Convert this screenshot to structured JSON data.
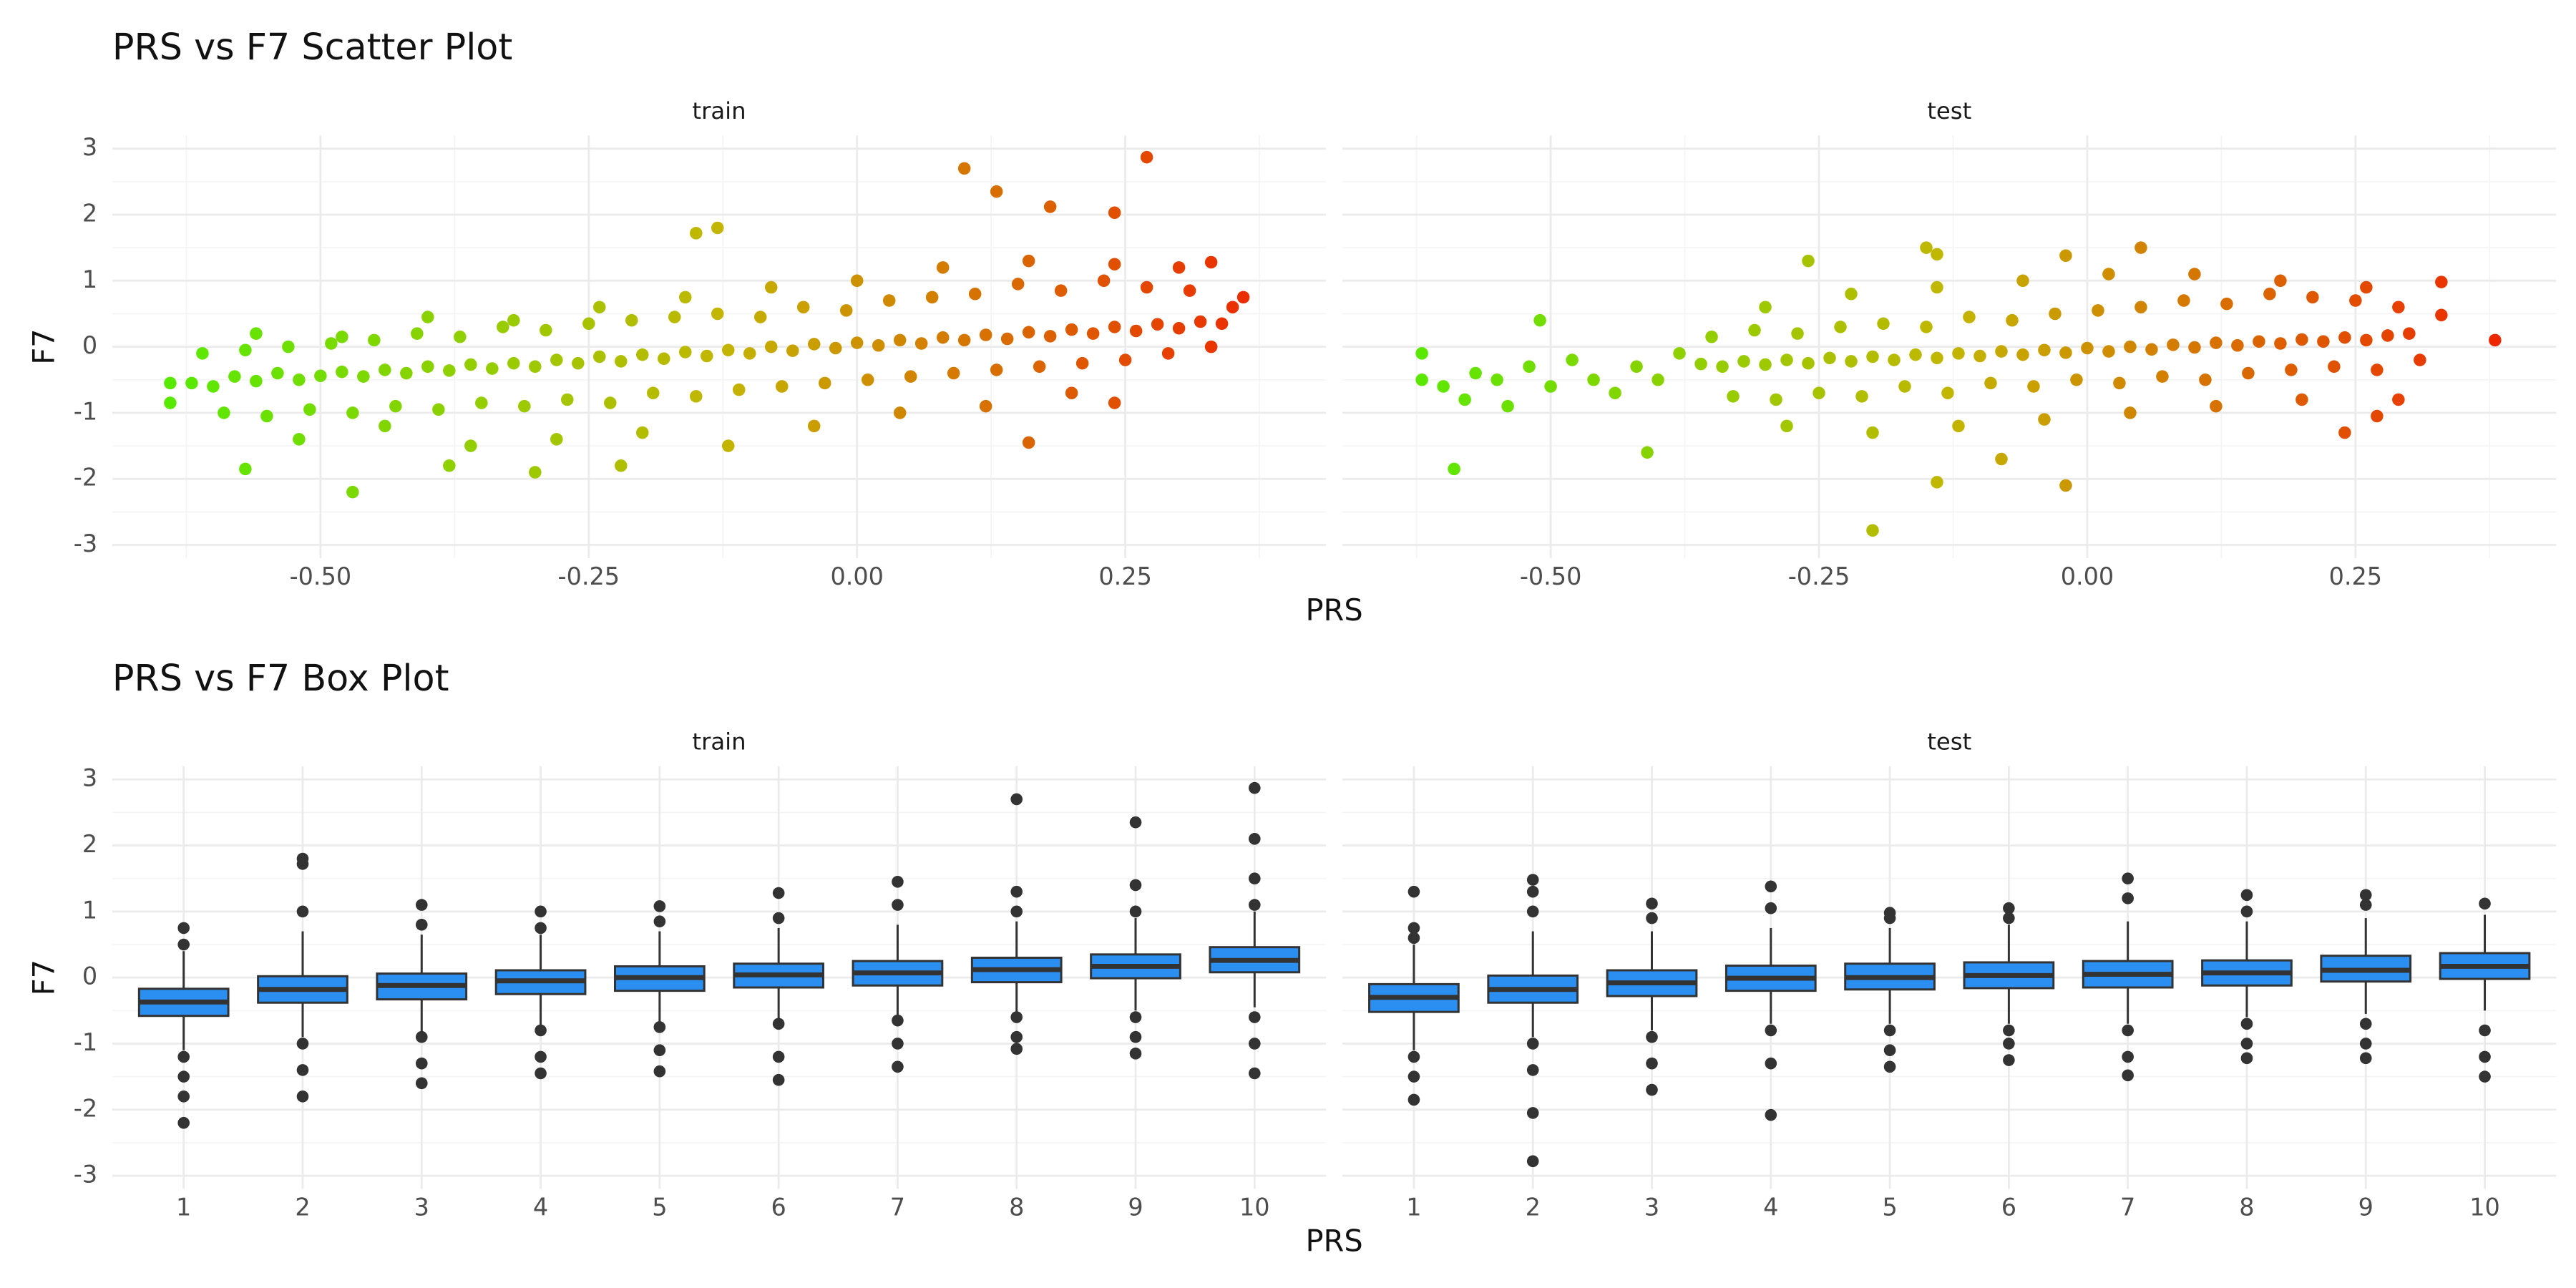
{
  "chart_data": [
    {
      "type": "scatter",
      "title": "PRS vs F7 Scatter Plot",
      "xlabel": "PRS",
      "ylabel": "F7",
      "xlim": [
        -0.694,
        0.437
      ],
      "ylim": [
        -3.2,
        3.2
      ],
      "xticks": [
        {
          "value": -0.5,
          "label": "-0.50"
        },
        -0.25,
        {
          "value": 0,
          "label": "0.00"
        },
        0.25
      ],
      "yticks": [
        -3,
        -2,
        -1,
        0,
        1,
        2,
        3
      ],
      "x_minor_ticks": [
        -0.625,
        -0.375,
        -0.125,
        0.125,
        0.375
      ],
      "y_minor_ticks": [
        -2.5,
        -1.5,
        -0.5,
        0.5,
        1.5,
        2.5
      ],
      "grid": true,
      "color_scale": [
        "#4cf000",
        "#c2b600",
        "#f21800"
      ],
      "facets": [
        {
          "name": "train",
          "x": [
            -0.62,
            -0.6,
            -0.58,
            -0.56,
            -0.54,
            -0.52,
            -0.5,
            -0.48,
            -0.46,
            -0.44,
            -0.42,
            -0.4,
            -0.38,
            -0.36,
            -0.34,
            -0.32,
            -0.3,
            -0.28,
            -0.26,
            -0.24,
            -0.22,
            -0.2,
            -0.18,
            -0.16,
            -0.14,
            -0.12,
            -0.1,
            -0.08,
            -0.06,
            -0.04,
            -0.02,
            0,
            0.02,
            0.04,
            0.06,
            0.08,
            0.1,
            0.12,
            0.14,
            0.16,
            0.18,
            0.2,
            0.22,
            0.24,
            0.26,
            0.28,
            0.3,
            0.32,
            0.34,
            -0.61,
            -0.57,
            -0.53,
            -0.49,
            -0.45,
            -0.41,
            -0.37,
            -0.33,
            -0.29,
            -0.25,
            -0.21,
            -0.17,
            -0.13,
            -0.09,
            -0.05,
            -0.01,
            0.03,
            0.07,
            0.11,
            0.15,
            0.19,
            0.23,
            0.27,
            0.31,
            -0.59,
            -0.55,
            -0.51,
            -0.47,
            -0.43,
            -0.39,
            -0.35,
            -0.31,
            -0.27,
            -0.23,
            -0.19,
            -0.15,
            -0.11,
            -0.07,
            -0.03,
            0.01,
            0.05,
            0.09,
            0.13,
            0.17,
            0.21,
            0.25,
            0.29,
            0.33,
            -0.56,
            -0.48,
            -0.4,
            -0.32,
            -0.24,
            -0.16,
            -0.08,
            0,
            0.08,
            0.16,
            0.24,
            0.3,
            -0.52,
            -0.44,
            -0.36,
            -0.28,
            -0.2,
            -0.12,
            -0.04,
            0.04,
            0.12,
            0.2,
            0.1,
            0.27,
            0.13,
            0.18,
            0.24,
            -0.15,
            -0.13,
            -0.47,
            -0.57,
            -0.64,
            -0.64,
            0.36,
            0.35,
            0.33,
            0.24,
            0.16,
            -0.38,
            -0.3,
            -0.22
          ],
          "values": [
            -0.55,
            -0.6,
            -0.45,
            -0.52,
            -0.4,
            -0.5,
            -0.44,
            -0.38,
            -0.45,
            -0.35,
            -0.4,
            -0.3,
            -0.36,
            -0.27,
            -0.33,
            -0.25,
            -0.3,
            -0.2,
            -0.25,
            -0.15,
            -0.22,
            -0.12,
            -0.18,
            -0.08,
            -0.14,
            -0.05,
            -0.1,
            0,
            -0.06,
            0.04,
            -0.02,
            0.06,
            0.02,
            0.1,
            0.05,
            0.14,
            0.1,
            0.18,
            0.12,
            0.22,
            0.16,
            0.26,
            0.2,
            0.3,
            0.24,
            0.34,
            0.28,
            0.38,
            0.35,
            -0.1,
            -0.05,
            0,
            0.05,
            0.1,
            0.2,
            0.15,
            0.3,
            0.25,
            0.35,
            0.4,
            0.45,
            0.5,
            0.45,
            0.6,
            0.55,
            0.7,
            0.75,
            0.8,
            0.95,
            0.85,
            1,
            0.9,
            0.85,
            -1,
            -1.05,
            -0.95,
            -1,
            -0.9,
            -0.95,
            -0.85,
            -0.9,
            -0.8,
            -0.85,
            -0.7,
            -0.75,
            -0.65,
            -0.6,
            -0.55,
            -0.5,
            -0.45,
            -0.4,
            -0.35,
            -0.3,
            -0.25,
            -0.2,
            -0.1,
            0,
            0.2,
            0.15,
            0.45,
            0.4,
            0.6,
            0.75,
            0.9,
            1,
            1.2,
            1.3,
            1.25,
            1.2,
            -1.4,
            -1.2,
            -1.5,
            -1.4,
            -1.3,
            -1.5,
            -1.2,
            -1,
            -0.9,
            -0.7,
            2.7,
            2.87,
            2.35,
            2.12,
            2.03,
            1.72,
            1.8,
            -2.2,
            -1.85,
            -0.55,
            -0.85,
            0.75,
            0.6,
            1.28,
            -0.85,
            -1.45,
            -1.8,
            -1.9,
            -1.8
          ]
        },
        {
          "name": "test",
          "x": [
            -0.36,
            -0.34,
            -0.32,
            -0.3,
            -0.28,
            -0.26,
            -0.24,
            -0.22,
            -0.2,
            -0.18,
            -0.16,
            -0.14,
            -0.12,
            -0.1,
            -0.08,
            -0.06,
            -0.04,
            -0.02,
            0,
            0.02,
            0.04,
            0.06,
            0.08,
            0.1,
            0.12,
            0.14,
            0.16,
            0.18,
            0.2,
            0.22,
            0.24,
            0.26,
            0.28,
            0.3,
            -0.35,
            -0.31,
            -0.27,
            -0.23,
            -0.19,
            -0.15,
            -0.11,
            -0.07,
            -0.03,
            0.01,
            0.05,
            0.09,
            0.13,
            0.17,
            0.21,
            0.25,
            0.29,
            -0.33,
            -0.29,
            -0.25,
            -0.21,
            -0.17,
            -0.13,
            -0.09,
            -0.05,
            -0.01,
            0.03,
            0.07,
            0.11,
            0.15,
            0.19,
            0.23,
            0.27,
            0.31,
            -0.62,
            -0.6,
            -0.58,
            -0.57,
            -0.55,
            -0.54,
            -0.52,
            -0.51,
            -0.5,
            -0.48,
            -0.46,
            -0.44,
            -0.42,
            -0.4,
            -0.38,
            -0.3,
            -0.22,
            -0.14,
            -0.06,
            0.02,
            0.1,
            0.18,
            0.26,
            -0.28,
            -0.2,
            -0.12,
            -0.04,
            0.04,
            0.12,
            0.2,
            0.05,
            -0.02,
            -0.15,
            -0.14,
            -0.26,
            -0.2,
            -0.14,
            -0.02,
            -0.08,
            -0.41,
            -0.59,
            0.38,
            0.33,
            0.33,
            0.29,
            0.24,
            -0.62,
            0.27
          ],
          "values": [
            -0.26,
            -0.3,
            -0.22,
            -0.27,
            -0.2,
            -0.25,
            -0.17,
            -0.22,
            -0.15,
            -0.2,
            -0.12,
            -0.17,
            -0.1,
            -0.14,
            -0.07,
            -0.12,
            -0.05,
            -0.09,
            -0.02,
            -0.07,
            0,
            -0.04,
            0.03,
            -0.01,
            0.06,
            0.02,
            0.08,
            0.05,
            0.11,
            0.08,
            0.14,
            0.1,
            0.17,
            0.2,
            0.15,
            0.25,
            0.2,
            0.3,
            0.35,
            0.3,
            0.45,
            0.4,
            0.5,
            0.55,
            0.6,
            0.7,
            0.65,
            0.8,
            0.75,
            0.7,
            0.6,
            -0.75,
            -0.8,
            -0.7,
            -0.75,
            -0.6,
            -0.7,
            -0.55,
            -0.6,
            -0.5,
            -0.55,
            -0.45,
            -0.5,
            -0.4,
            -0.35,
            -0.3,
            -0.35,
            -0.2,
            -0.5,
            -0.6,
            -0.8,
            -0.4,
            -0.5,
            -0.9,
            -0.3,
            0.4,
            -0.6,
            -0.2,
            -0.5,
            -0.7,
            -0.3,
            -0.5,
            -0.1,
            0.6,
            0.8,
            0.9,
            1,
            1.1,
            1.1,
            1,
            0.9,
            -1.2,
            -1.3,
            -1.2,
            -1.1,
            -1,
            -0.9,
            -0.8,
            1.5,
            1.38,
            1.5,
            1.4,
            1.3,
            -2.78,
            -2.05,
            -2.1,
            -1.7,
            -1.6,
            -1.85,
            0.1,
            0.98,
            0.48,
            -0.8,
            -1.3,
            -0.1,
            -1.05
          ]
        }
      ]
    },
    {
      "type": "box",
      "title": "PRS vs F7 Box Plot",
      "xlabel": "PRS",
      "ylabel": "F7",
      "ylim": [
        -3.2,
        3.2
      ],
      "yticks": [
        -3,
        -2,
        -1,
        0,
        1,
        2,
        3
      ],
      "y_minor_ticks": [
        -2.5,
        -1.5,
        -0.5,
        0.5,
        1.5,
        2.5
      ],
      "grid": true,
      "color": "#2b8ff2",
      "line_color": "#333333",
      "categories": [
        "1",
        "2",
        "3",
        "4",
        "5",
        "6",
        "7",
        "8",
        "9",
        "10"
      ],
      "facets": [
        {
          "name": "train",
          "boxes": [
            {
              "q1": -0.58,
              "median": -0.37,
              "q3": -0.17,
              "low": -1.1,
              "high": 0.4,
              "outliers": [
                0.75,
                0.5,
                -1.2,
                -1.5,
                -1.8,
                -2.2
              ]
            },
            {
              "q1": -0.38,
              "median": -0.18,
              "q3": 0.02,
              "low": -0.9,
              "high": 0.7,
              "outliers": [
                1.8,
                1.72,
                1,
                -1,
                -1.4,
                -1.8
              ]
            },
            {
              "q1": -0.33,
              "median": -0.12,
              "q3": 0.06,
              "low": -0.85,
              "high": 0.65,
              "outliers": [
                1.1,
                0.8,
                -0.9,
                -1.3,
                -1.6
              ]
            },
            {
              "q1": -0.25,
              "median": -0.05,
              "q3": 0.11,
              "low": -0.75,
              "high": 0.65,
              "outliers": [
                1,
                0.75,
                -0.8,
                -1.2,
                -1.45
              ]
            },
            {
              "q1": -0.2,
              "median": 0,
              "q3": 0.17,
              "low": -0.7,
              "high": 0.7,
              "outliers": [
                1.08,
                0.85,
                -0.75,
                -1.1,
                -1.42
              ]
            },
            {
              "q1": -0.15,
              "median": 0.04,
              "q3": 0.21,
              "low": -0.65,
              "high": 0.75,
              "outliers": [
                1.28,
                0.9,
                -0.7,
                -1.2,
                -1.55
              ]
            },
            {
              "q1": -0.12,
              "median": 0.07,
              "q3": 0.25,
              "low": -0.6,
              "high": 0.8,
              "outliers": [
                1.45,
                1.1,
                -0.65,
                -1,
                -1.35
              ]
            },
            {
              "q1": -0.07,
              "median": 0.12,
              "q3": 0.3,
              "low": -0.55,
              "high": 0.85,
              "outliers": [
                2.7,
                1.3,
                1,
                -0.6,
                -0.9,
                -1.08
              ]
            },
            {
              "q1": -0.01,
              "median": 0.17,
              "q3": 0.35,
              "low": -0.5,
              "high": 0.9,
              "outliers": [
                2.35,
                1.4,
                1,
                -0.6,
                -0.9,
                -1.15
              ]
            },
            {
              "q1": 0.08,
              "median": 0.26,
              "q3": 0.46,
              "low": -0.45,
              "high": 1,
              "outliers": [
                2.87,
                2.1,
                1.5,
                1.1,
                -0.6,
                -1,
                -1.45
              ]
            }
          ]
        },
        {
          "name": "test",
          "boxes": [
            {
              "q1": -0.52,
              "median": -0.3,
              "q3": -0.1,
              "low": -1.1,
              "high": 0.5,
              "outliers": [
                1.3,
                0.75,
                0.6,
                -1.2,
                -1.5,
                -1.85
              ]
            },
            {
              "q1": -0.38,
              "median": -0.18,
              "q3": 0.03,
              "low": -0.9,
              "high": 0.7,
              "outliers": [
                1.48,
                1.3,
                1,
                -1,
                -1.4,
                -2.05,
                -2.78
              ]
            },
            {
              "q1": -0.28,
              "median": -0.08,
              "q3": 0.11,
              "low": -0.8,
              "high": 0.7,
              "outliers": [
                1.12,
                0.9,
                -0.9,
                -1.3,
                -1.7
              ]
            },
            {
              "q1": -0.2,
              "median": -0.01,
              "q3": 0.18,
              "low": -0.7,
              "high": 0.75,
              "outliers": [
                1.38,
                1.05,
                -0.8,
                -1.3,
                -2.08
              ]
            },
            {
              "q1": -0.18,
              "median": 0,
              "q3": 0.21,
              "low": -0.7,
              "high": 0.75,
              "outliers": [
                0.98,
                0.9,
                -0.8,
                -1.1,
                -1.35
              ]
            },
            {
              "q1": -0.16,
              "median": 0.03,
              "q3": 0.23,
              "low": -0.7,
              "high": 0.8,
              "outliers": [
                1.05,
                0.9,
                -0.8,
                -1,
                -1.25
              ]
            },
            {
              "q1": -0.15,
              "median": 0.05,
              "q3": 0.25,
              "low": -0.7,
              "high": 0.85,
              "outliers": [
                1.5,
                1.2,
                -0.8,
                -1.2,
                -1.48
              ]
            },
            {
              "q1": -0.12,
              "median": 0.07,
              "q3": 0.26,
              "low": -0.6,
              "high": 0.85,
              "outliers": [
                1.25,
                1,
                -0.7,
                -1,
                -1.22
              ]
            },
            {
              "q1": -0.06,
              "median": 0.11,
              "q3": 0.33,
              "low": -0.55,
              "high": 0.9,
              "outliers": [
                1.25,
                1.1,
                -0.7,
                -1,
                -1.22
              ]
            },
            {
              "q1": -0.02,
              "median": 0.17,
              "q3": 0.37,
              "low": -0.5,
              "high": 0.95,
              "outliers": [
                1.12,
                -0.8,
                -1.2,
                -1.5
              ]
            }
          ]
        }
      ]
    }
  ]
}
